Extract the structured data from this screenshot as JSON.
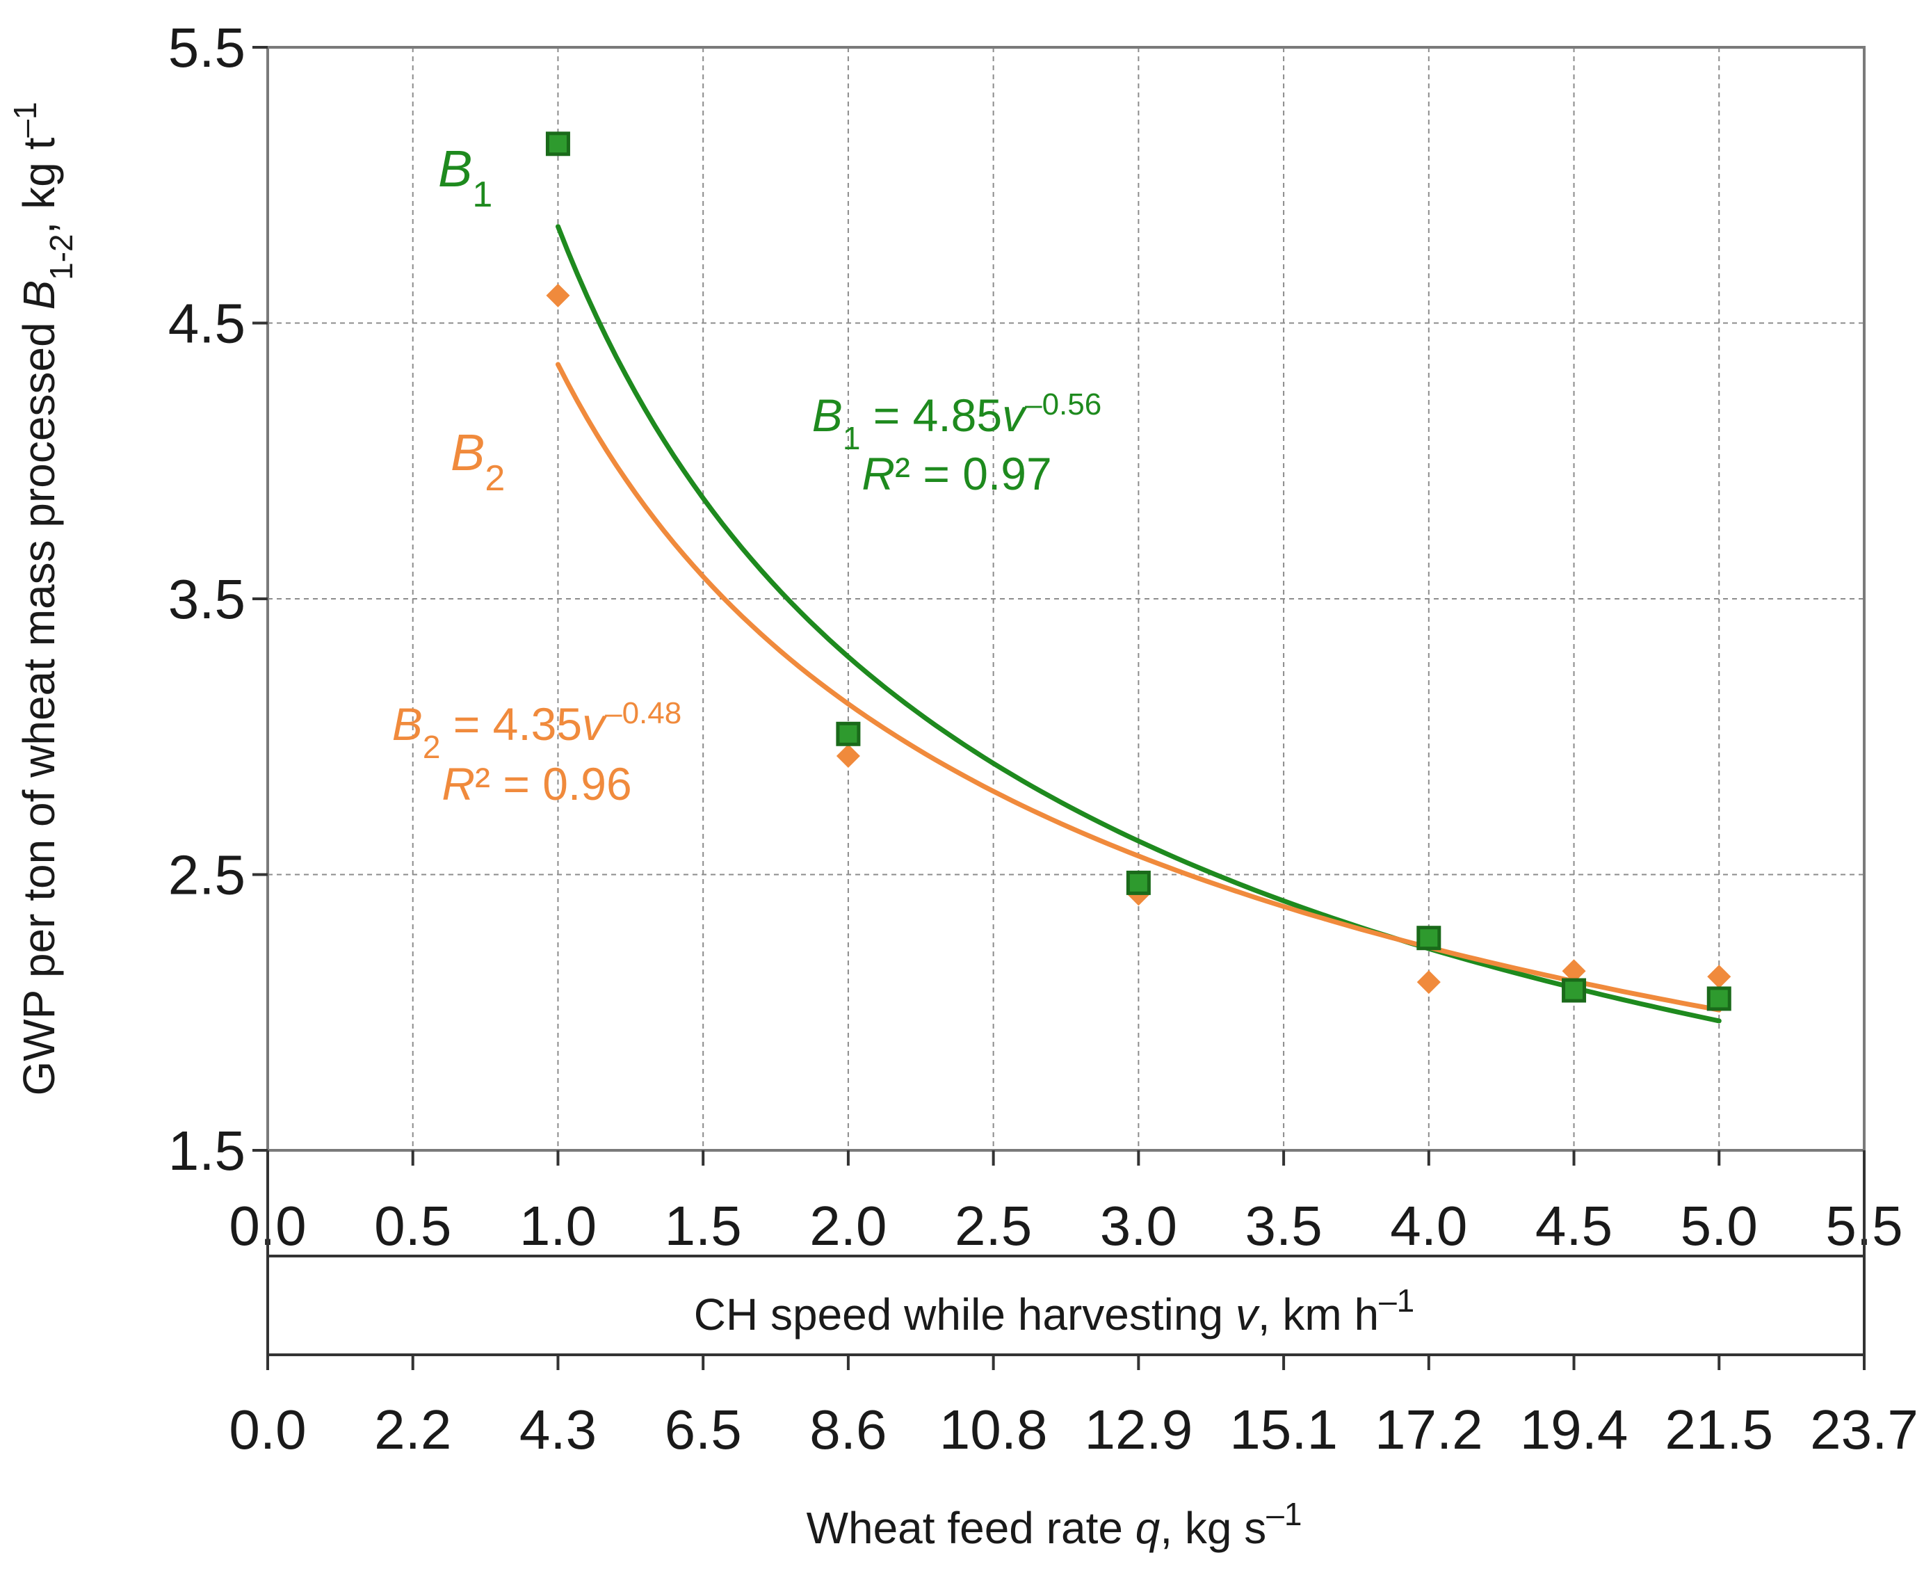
{
  "chart_data": {
    "type": "scatter",
    "y_axis": {
      "label_prefix": "GWP per ton of wheat mass processed ",
      "label_var": "B",
      "label_sub": "1-2",
      "label_suffix": ",  kg t",
      "label_sup": "–1",
      "ylim": [
        1.5,
        5.5
      ],
      "ticks": [
        "1.5",
        "2.5",
        "3.5",
        "4.5",
        "5.5"
      ]
    },
    "x_axis_primary": {
      "label_prefix": "CH speed while harvesting ",
      "label_var": "v",
      "label_suffix": ", km h",
      "label_sup": "–1",
      "xlim": [
        0,
        5.5
      ],
      "ticks": [
        "0.0",
        "0.5",
        "1.0",
        "1.5",
        "2.0",
        "2.5",
        "3.0",
        "3.5",
        "4.0",
        "4.5",
        "5.0",
        "5.5"
      ]
    },
    "x_axis_secondary": {
      "label_prefix": "Wheat feed rate ",
      "label_var": "q",
      "label_suffix": ", kg s",
      "label_sup": "–1",
      "ticks": [
        "0.0",
        "2.2",
        "4.3",
        "6.5",
        "8.6",
        "10.8",
        "12.9",
        "15.1",
        "17.2",
        "19.4",
        "21.5",
        "23.7"
      ]
    },
    "series": [
      {
        "name": "B1",
        "label_var": "B",
        "label_sub": "1",
        "marker": "square",
        "color": "#1e8a1e",
        "x": [
          1.0,
          2.0,
          3.0,
          4.0,
          4.5,
          5.0
        ],
        "y": [
          5.15,
          3.01,
          2.47,
          2.27,
          2.08,
          2.05
        ],
        "trendline": {
          "a": 4.85,
          "b": -0.56,
          "x_from": 1.0,
          "x_to": 5.0
        },
        "equation": {
          "lhs_var": "B",
          "lhs_sub": "1",
          "mid": " = 4.85",
          "var": "v",
          "exp": "–0.56"
        },
        "r2": {
          "var": "R",
          "text": "² = 0.97"
        }
      },
      {
        "name": "B2",
        "label_var": "B",
        "label_sub": "2",
        "marker": "diamond",
        "color": "#f08a3c",
        "x": [
          1.0,
          2.0,
          3.0,
          4.0,
          4.5,
          5.0
        ],
        "y": [
          4.6,
          2.93,
          2.43,
          2.11,
          2.15,
          2.13
        ],
        "trendline": {
          "a": 4.35,
          "b": -0.48,
          "x_from": 1.0,
          "x_to": 5.0
        },
        "equation": {
          "lhs_var": "B",
          "lhs_sub": "2",
          "mid": " = 4.35",
          "var": "v",
          "exp": "–0.48"
        },
        "r2": {
          "var": "R",
          "text": "² = 0.96"
        }
      }
    ]
  },
  "colors": {
    "grid": "#8c8c8c",
    "axis": "#333333",
    "text": "#1a1a1a"
  }
}
